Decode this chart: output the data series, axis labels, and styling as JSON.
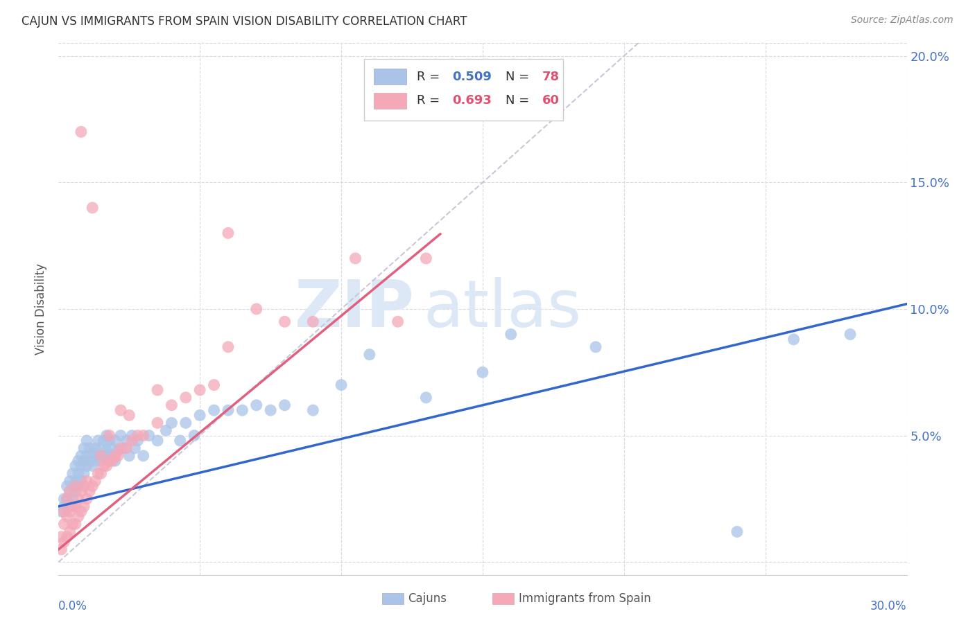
{
  "title": "CAJUN VS IMMIGRANTS FROM SPAIN VISION DISABILITY CORRELATION CHART",
  "source": "Source: ZipAtlas.com",
  "ylabel": "Vision Disability",
  "xlim": [
    0.0,
    0.3
  ],
  "ylim": [
    -0.005,
    0.205
  ],
  "ytick_values": [
    0.0,
    0.05,
    0.1,
    0.15,
    0.2
  ],
  "ytick_labels": [
    "",
    "5.0%",
    "10.0%",
    "15.0%",
    "20.0%"
  ],
  "legend_cajun_R": "0.509",
  "legend_cajun_N": "78",
  "legend_spain_R": "0.693",
  "legend_spain_N": "60",
  "cajun_color": "#aac4e8",
  "spain_color": "#f4a8b8",
  "cajun_line_color": "#3366cc",
  "spain_line_color": "#e06080",
  "dashed_line_color": "#c8c8d8",
  "watermark_zip": "ZIP",
  "watermark_atlas": "atlas",
  "background_color": "#ffffff",
  "cajun_x": [
    0.001,
    0.002,
    0.002,
    0.003,
    0.003,
    0.004,
    0.004,
    0.004,
    0.005,
    0.005,
    0.005,
    0.006,
    0.006,
    0.006,
    0.007,
    0.007,
    0.007,
    0.008,
    0.008,
    0.008,
    0.009,
    0.009,
    0.009,
    0.01,
    0.01,
    0.01,
    0.011,
    0.011,
    0.012,
    0.012,
    0.013,
    0.013,
    0.014,
    0.014,
    0.015,
    0.015,
    0.016,
    0.016,
    0.017,
    0.017,
    0.018,
    0.018,
    0.019,
    0.02,
    0.02,
    0.021,
    0.022,
    0.023,
    0.024,
    0.025,
    0.026,
    0.027,
    0.028,
    0.03,
    0.032,
    0.035,
    0.038,
    0.04,
    0.043,
    0.045,
    0.048,
    0.05,
    0.055,
    0.06,
    0.065,
    0.07,
    0.075,
    0.08,
    0.09,
    0.1,
    0.11,
    0.13,
    0.15,
    0.16,
    0.19,
    0.24,
    0.26,
    0.28
  ],
  "cajun_y": [
    0.02,
    0.022,
    0.025,
    0.025,
    0.03,
    0.022,
    0.028,
    0.032,
    0.025,
    0.03,
    0.035,
    0.028,
    0.032,
    0.038,
    0.03,
    0.035,
    0.04,
    0.032,
    0.038,
    0.042,
    0.035,
    0.04,
    0.045,
    0.038,
    0.042,
    0.048,
    0.04,
    0.045,
    0.038,
    0.043,
    0.04,
    0.045,
    0.042,
    0.048,
    0.04,
    0.045,
    0.042,
    0.048,
    0.044,
    0.05,
    0.042,
    0.048,
    0.045,
    0.04,
    0.048,
    0.044,
    0.05,
    0.045,
    0.048,
    0.042,
    0.05,
    0.045,
    0.048,
    0.042,
    0.05,
    0.048,
    0.052,
    0.055,
    0.048,
    0.055,
    0.05,
    0.058,
    0.06,
    0.06,
    0.06,
    0.062,
    0.06,
    0.062,
    0.06,
    0.07,
    0.082,
    0.065,
    0.075,
    0.09,
    0.085,
    0.012,
    0.088,
    0.09
  ],
  "spain_x": [
    0.001,
    0.001,
    0.002,
    0.002,
    0.002,
    0.003,
    0.003,
    0.003,
    0.004,
    0.004,
    0.004,
    0.005,
    0.005,
    0.006,
    0.006,
    0.006,
    0.007,
    0.007,
    0.008,
    0.008,
    0.009,
    0.009,
    0.01,
    0.01,
    0.011,
    0.012,
    0.013,
    0.014,
    0.015,
    0.016,
    0.017,
    0.018,
    0.019,
    0.02,
    0.021,
    0.022,
    0.024,
    0.026,
    0.028,
    0.03,
    0.035,
    0.04,
    0.045,
    0.05,
    0.055,
    0.06,
    0.08,
    0.09,
    0.105,
    0.12,
    0.13,
    0.06,
    0.07,
    0.035,
    0.025,
    0.015,
    0.018,
    0.022,
    0.012,
    0.008
  ],
  "spain_y": [
    0.005,
    0.01,
    0.008,
    0.015,
    0.02,
    0.01,
    0.018,
    0.025,
    0.012,
    0.02,
    0.028,
    0.015,
    0.022,
    0.015,
    0.022,
    0.03,
    0.018,
    0.025,
    0.02,
    0.028,
    0.022,
    0.03,
    0.025,
    0.032,
    0.028,
    0.03,
    0.032,
    0.035,
    0.035,
    0.038,
    0.038,
    0.04,
    0.04,
    0.042,
    0.042,
    0.045,
    0.045,
    0.048,
    0.05,
    0.05,
    0.055,
    0.062,
    0.065,
    0.068,
    0.07,
    0.085,
    0.095,
    0.095,
    0.12,
    0.095,
    0.12,
    0.13,
    0.1,
    0.068,
    0.058,
    0.042,
    0.05,
    0.06,
    0.14,
    0.17
  ]
}
